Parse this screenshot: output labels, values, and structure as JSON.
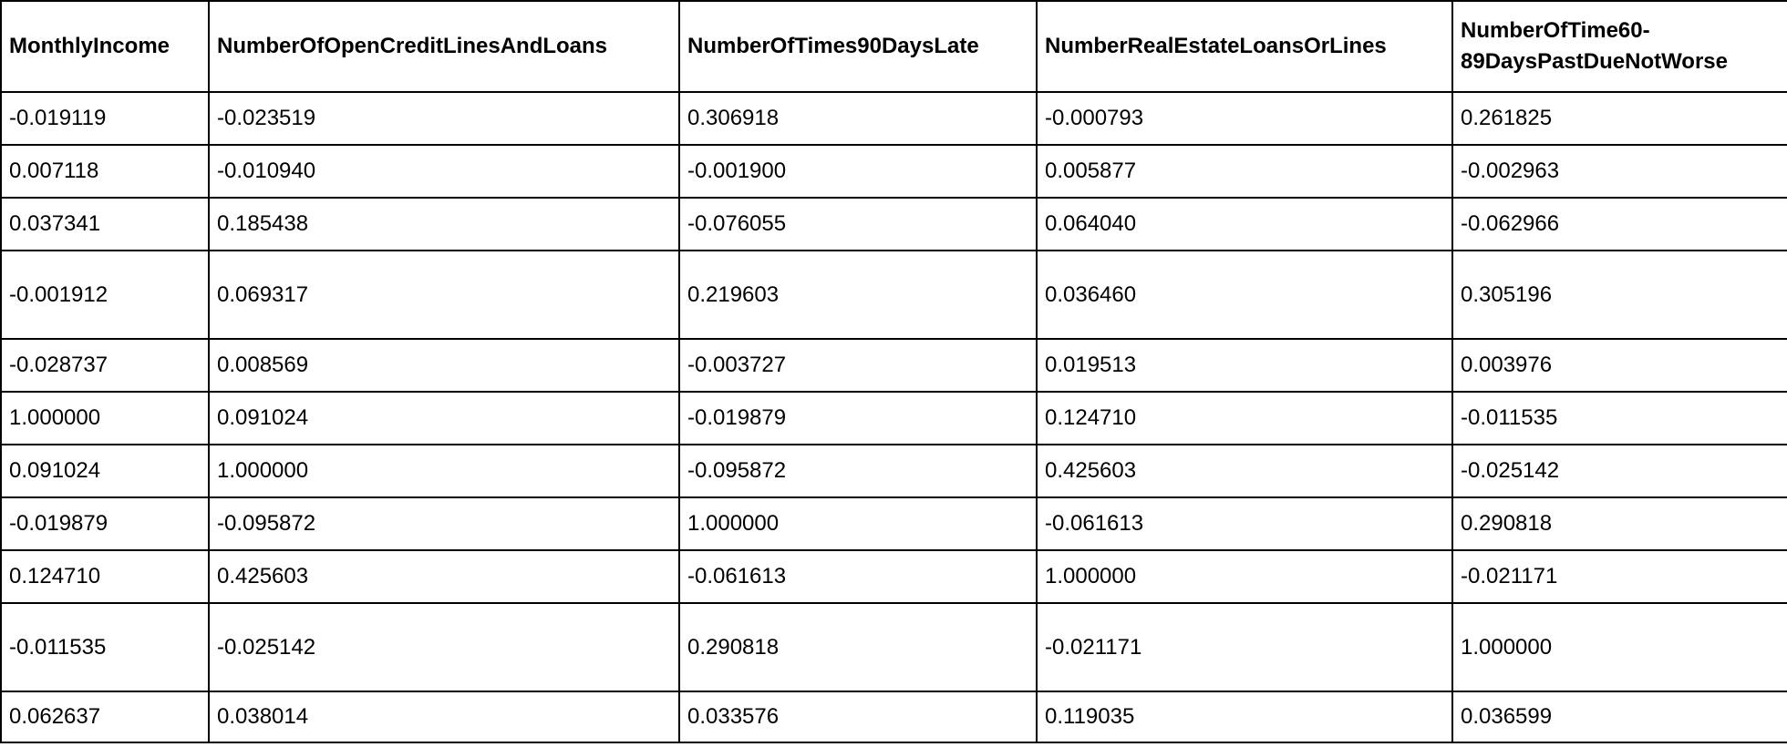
{
  "table": {
    "columns": [
      "MonthlyIncome",
      "NumberOfOpenCreditLinesAndLoans",
      "NumberOfTimes90DaysLate",
      "NumberRealEstateLoansOrLines",
      "NumberOfTime60-89DaysPastDueNotWorse"
    ],
    "rows": [
      [
        "-0.019119",
        "-0.023519",
        "0.306918",
        "-0.000793",
        "0.261825"
      ],
      [
        "0.007118",
        "-0.010940",
        "-0.001900",
        "0.005877",
        "-0.002963"
      ],
      [
        "0.037341",
        "0.185438",
        "-0.076055",
        "0.064040",
        "-0.062966"
      ],
      [
        "-0.001912",
        "0.069317",
        "0.219603",
        "0.036460",
        "0.305196"
      ],
      [
        "-0.028737",
        "0.008569",
        "-0.003727",
        "0.019513",
        "0.003976"
      ],
      [
        "1.000000",
        "0.091024",
        "-0.019879",
        "0.124710",
        "-0.011535"
      ],
      [
        "0.091024",
        "1.000000",
        "-0.095872",
        "0.425603",
        "-0.025142"
      ],
      [
        "-0.019879",
        "-0.095872",
        "1.000000",
        "-0.061613",
        "0.290818"
      ],
      [
        "0.124710",
        "0.425603",
        "-0.061613",
        "1.000000",
        "-0.021171"
      ],
      [
        "-0.011535",
        "-0.025142",
        "0.290818",
        "-0.021171",
        "1.000000"
      ],
      [
        "0.062637",
        "0.038014",
        "0.033576",
        "0.119035",
        "0.036599"
      ]
    ]
  }
}
